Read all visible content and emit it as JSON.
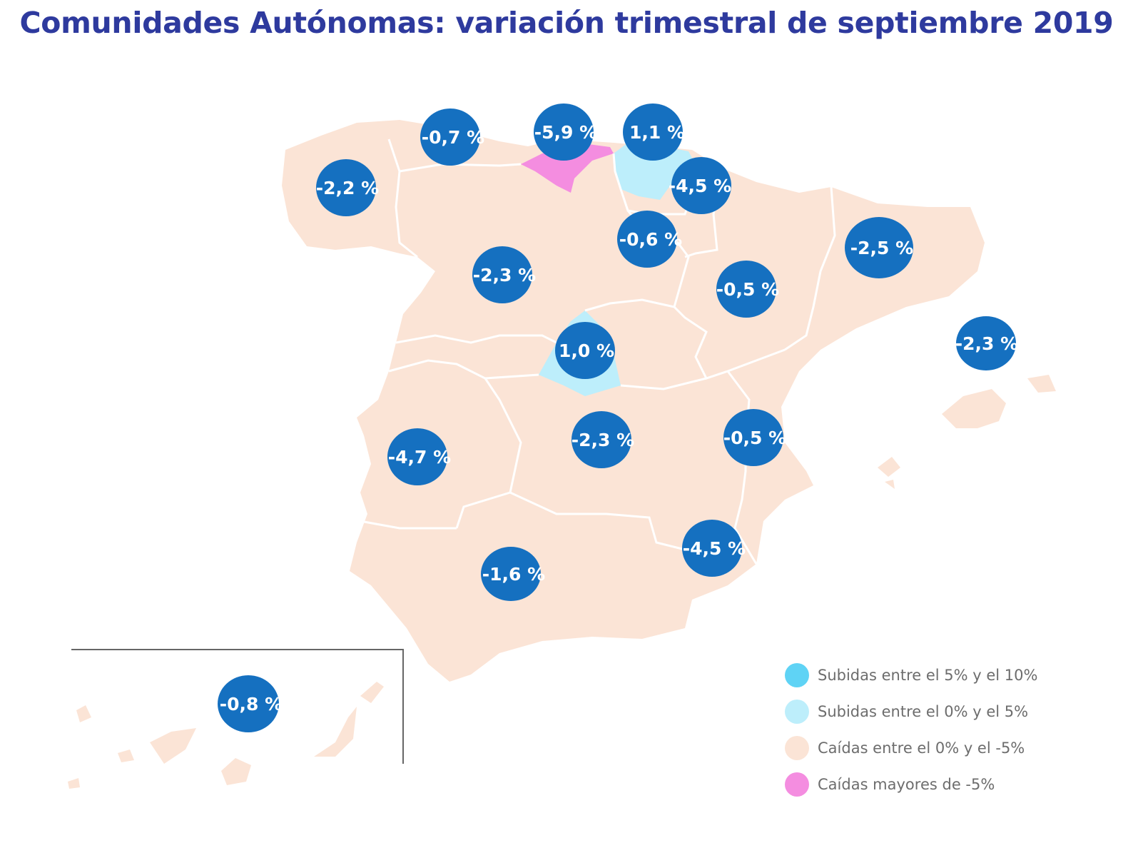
{
  "title": "Comunidades Autónomas: variación trimestral de septiembre 2019",
  "colors": {
    "rise_5_10": "#5fd3f5",
    "rise_0_5": "#bdeefb",
    "fall_0_5": "#fbe4d6",
    "fall_gt_5": "#f48de0",
    "bubble": "#1570c0",
    "title": "#2e3a9e"
  },
  "legend": [
    {
      "label": "Subidas entre el 5% y el 10%",
      "color": "#5fd3f5"
    },
    {
      "label": "Subidas entre el 0% y el 5%",
      "color": "#bdeefb"
    },
    {
      "label": "Caídas entre el 0% y el -5%",
      "color": "#fbe4d6"
    },
    {
      "label": "Caídas mayores de -5%",
      "color": "#f48de0"
    }
  ],
  "regions": [
    {
      "label": "-2,2 %"
    },
    {
      "label": "-0,7 %"
    },
    {
      "label": "-5,9 %"
    },
    {
      "label": "1,1 %"
    },
    {
      "label": "-4,5 %"
    },
    {
      "label": "-0,6 %"
    },
    {
      "label": "-2,3 %"
    },
    {
      "label": "-2,5 %"
    },
    {
      "label": "-0,5 %"
    },
    {
      "label": "-2,3 %"
    },
    {
      "label": "1,0 %"
    },
    {
      "label": "-4,7 %"
    },
    {
      "label": "-2,3 %"
    },
    {
      "label": "-0,5 %"
    },
    {
      "label": "-4,5 %"
    },
    {
      "label": "-1,6 %"
    },
    {
      "label": "-0,8 %"
    }
  ]
}
